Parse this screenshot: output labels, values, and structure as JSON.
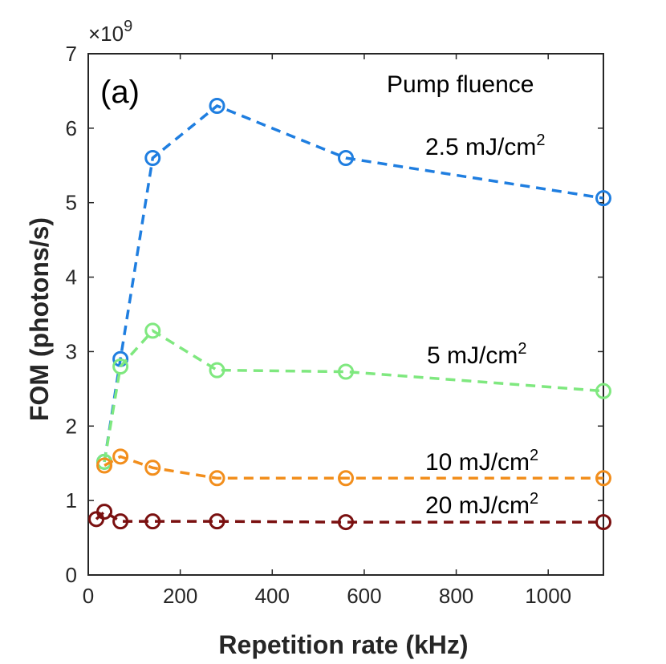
{
  "chart_data": {
    "type": "line",
    "panel_label": "(a)",
    "legend_title": "Pump fluence",
    "xlabel": "Repetition rate (kHz)",
    "ylabel": "FOM (photons/s)",
    "y_multiplier_base": "×10",
    "y_multiplier_exp": "9",
    "xlim": [
      0,
      1120
    ],
    "ylim": [
      0,
      7
    ],
    "x_ticks": [
      0,
      200,
      400,
      600,
      800,
      1000
    ],
    "y_ticks": [
      0,
      1,
      2,
      3,
      4,
      5,
      6,
      7
    ],
    "grid": false,
    "series": [
      {
        "name": "2.5 mJ/cm2",
        "label_main": "2.5 mJ/cm",
        "label_sup": "2",
        "color": "#1f7ee0",
        "x": [
          35,
          70,
          140,
          280,
          560,
          1120
        ],
        "y": [
          1.52,
          2.9,
          5.6,
          6.3,
          5.6,
          5.06
        ]
      },
      {
        "name": "5 mJ/cm2",
        "label_main": "5 mJ/cm",
        "label_sup": "2",
        "color": "#7fe87f",
        "x": [
          35,
          70,
          140,
          280,
          560,
          1120
        ],
        "y": [
          1.52,
          2.8,
          3.28,
          2.75,
          2.73,
          2.47
        ]
      },
      {
        "name": "10 mJ/cm2",
        "label_main": "10 mJ/cm",
        "label_sup": "2",
        "color": "#f28e1c",
        "x": [
          35,
          70,
          140,
          280,
          560,
          1120
        ],
        "y": [
          1.47,
          1.59,
          1.44,
          1.3,
          1.3,
          1.3
        ]
      },
      {
        "name": "20 mJ/cm2",
        "label_main": "20 mJ/cm",
        "label_sup": "2",
        "color": "#7a1010",
        "x": [
          17.5,
          35,
          70,
          140,
          280,
          560,
          1120
        ],
        "y": [
          0.75,
          0.85,
          0.72,
          0.72,
          0.72,
          0.71,
          0.71
        ]
      }
    ]
  }
}
